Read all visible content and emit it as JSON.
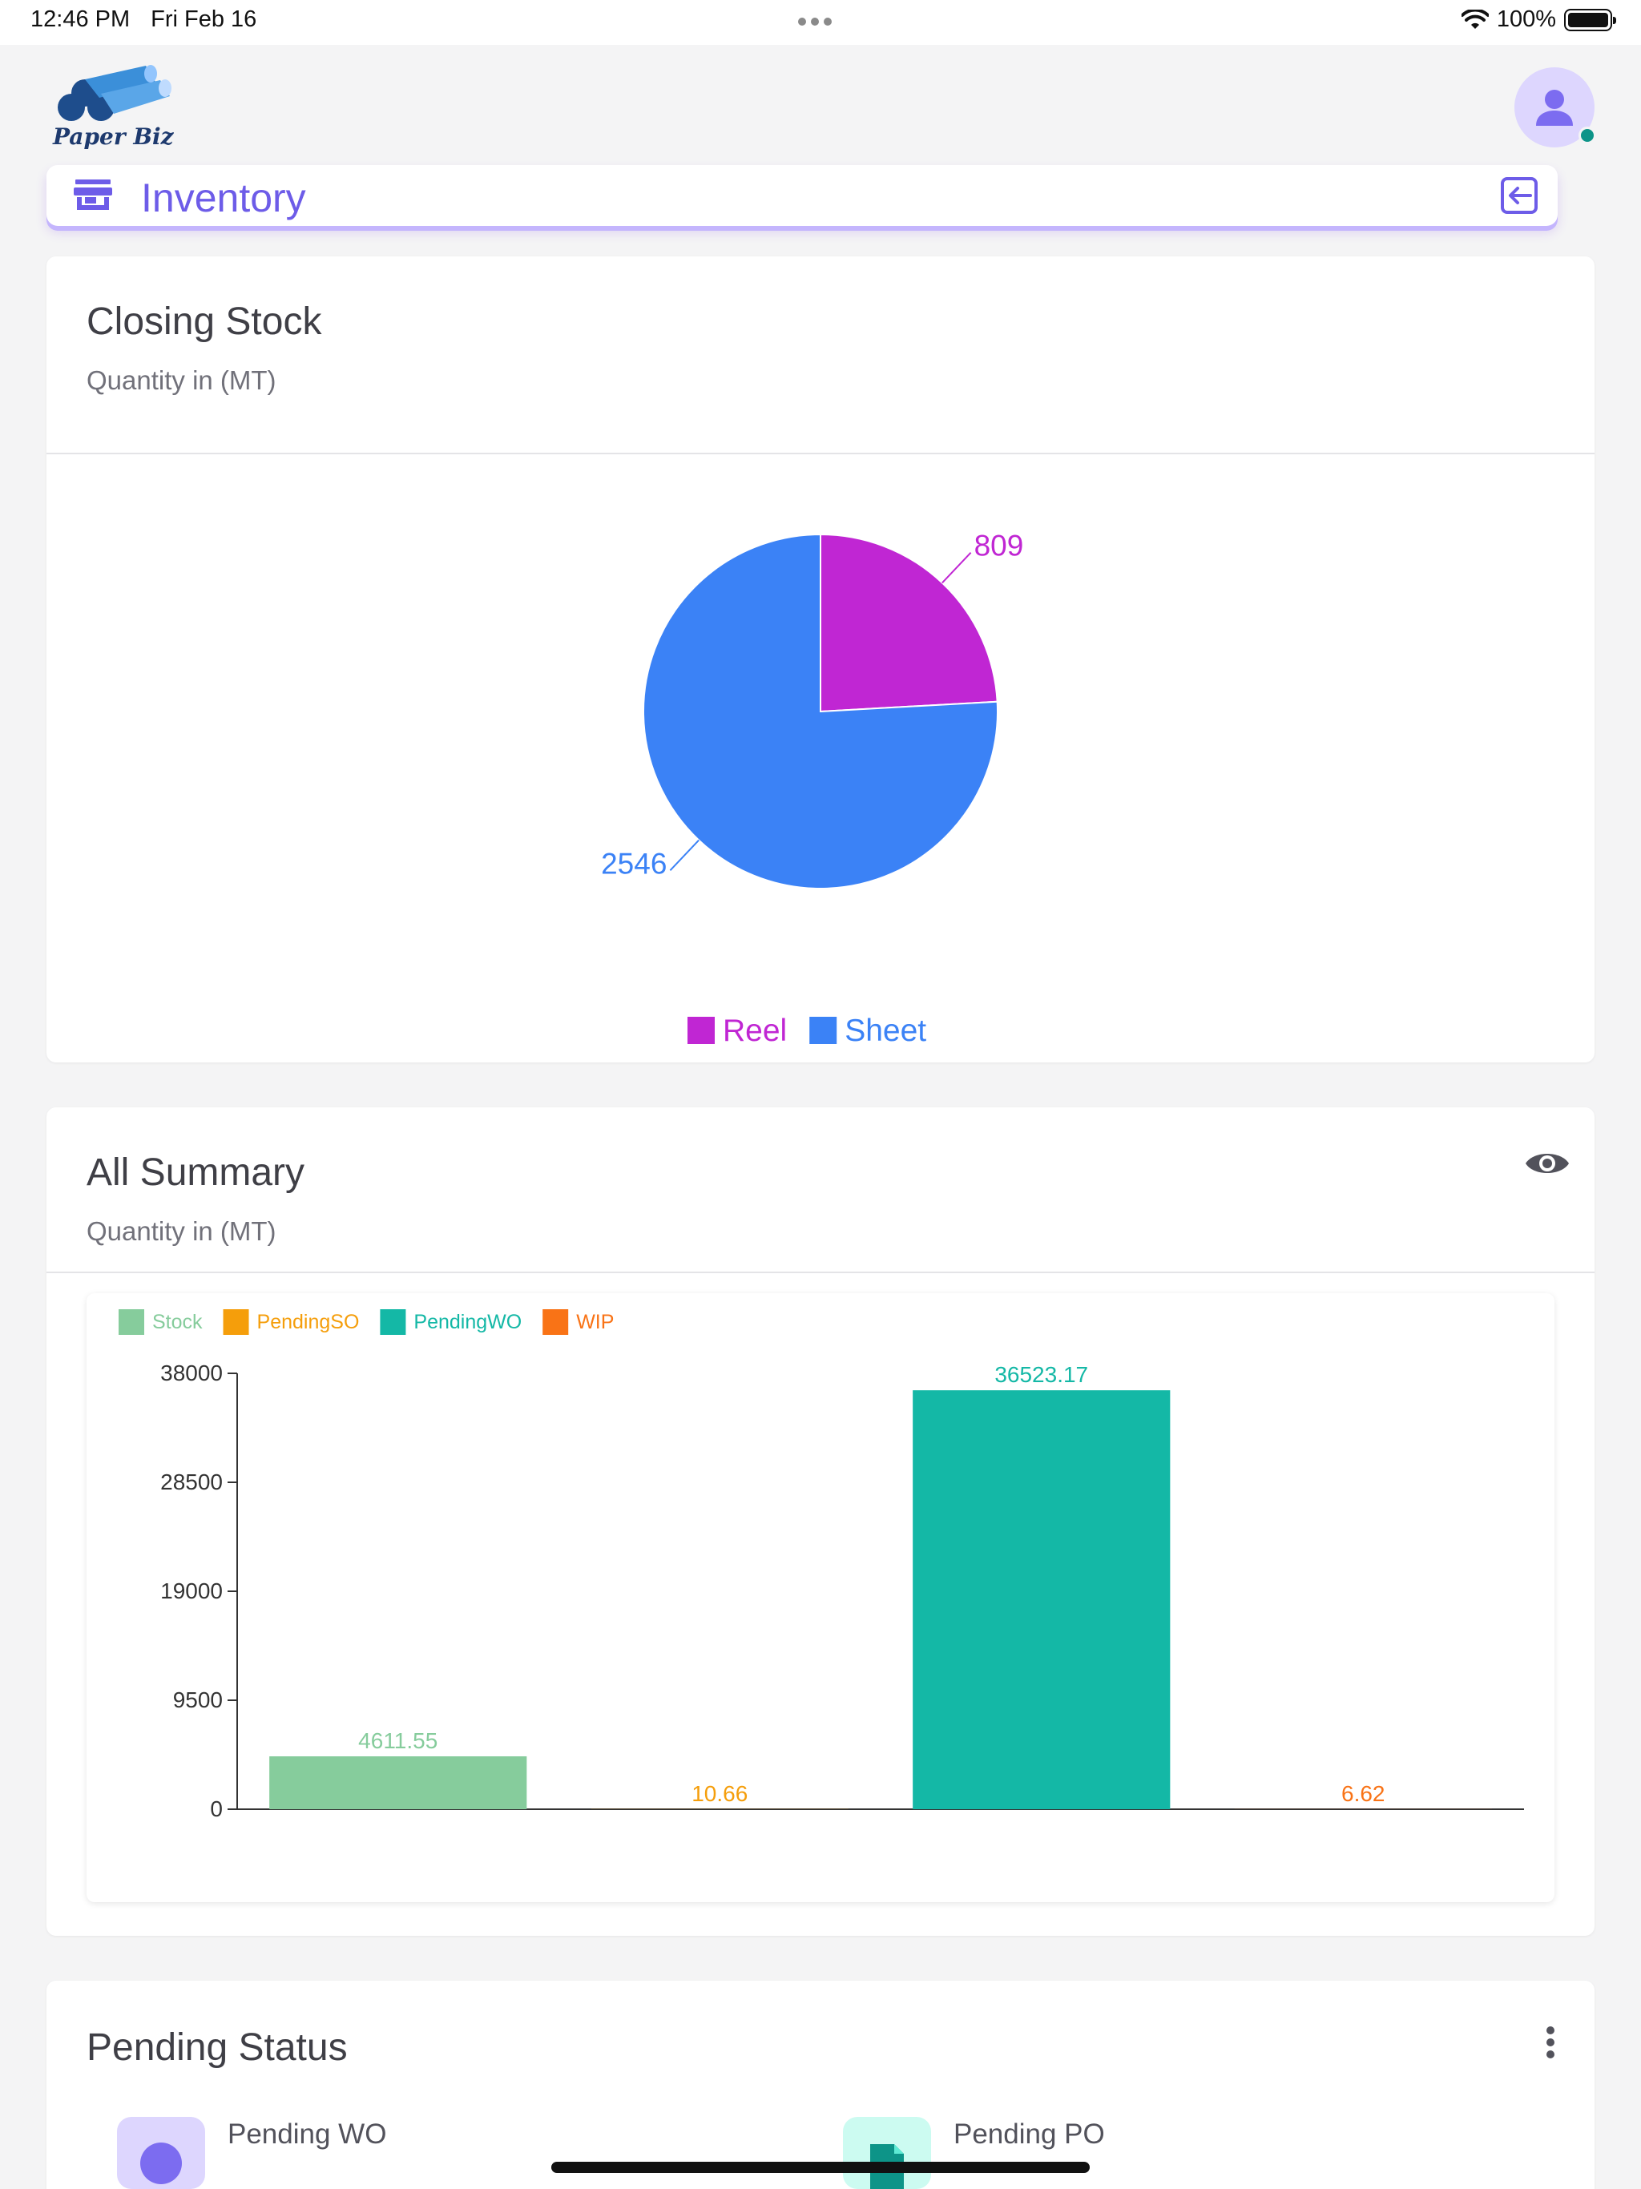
{
  "status_bar": {
    "time": "12:46 PM",
    "date": "Fri Feb 16",
    "battery": "100%"
  },
  "header": {
    "logo_text": "Paper Biz",
    "page_title": "Inventory"
  },
  "closing_stock": {
    "title": "Closing Stock",
    "subtitle": "Quantity in (MT)"
  },
  "all_summary": {
    "title": "All Summary",
    "subtitle": "Quantity in (MT)"
  },
  "pending_status": {
    "title": "Pending Status",
    "items": [
      {
        "label": "Pending WO",
        "icon": "person-icon",
        "color": "#ddd6fe"
      },
      {
        "label": "Pending PO",
        "icon": "document-icon",
        "color": "#ccfbf1"
      }
    ]
  },
  "colors": {
    "accent": "#6d5ce8",
    "reel": "#c026d3",
    "sheet": "#3b82f6",
    "stock": "#86cc9c",
    "pending_so": "#f59e0b",
    "pending_wo": "#14b8a6",
    "wip": "#f97316"
  },
  "chart_data": [
    {
      "type": "pie",
      "categories": [
        "Reel",
        "Sheet"
      ],
      "values": [
        809,
        2546
      ],
      "colors": [
        "#c026d3",
        "#3b82f6"
      ],
      "legend": "bottom"
    },
    {
      "type": "bar",
      "categories": [
        "Stock",
        "PendingSO",
        "PendingWO",
        "WIP"
      ],
      "values": [
        4611.55,
        10.66,
        36523.17,
        6.62
      ],
      "labels": [
        "4611.55",
        "10.66",
        "36523.17",
        "6.62"
      ],
      "colors": [
        "#86cc9c",
        "#f59e0b",
        "#14b8a6",
        "#f97316"
      ],
      "yticks": [
        "38000",
        "28500",
        "19000",
        "9500",
        "0"
      ],
      "ytick_values": [
        38000,
        28500,
        19000,
        9500,
        0
      ],
      "ylim": [
        0,
        38000
      ],
      "legend": "top-left"
    }
  ]
}
